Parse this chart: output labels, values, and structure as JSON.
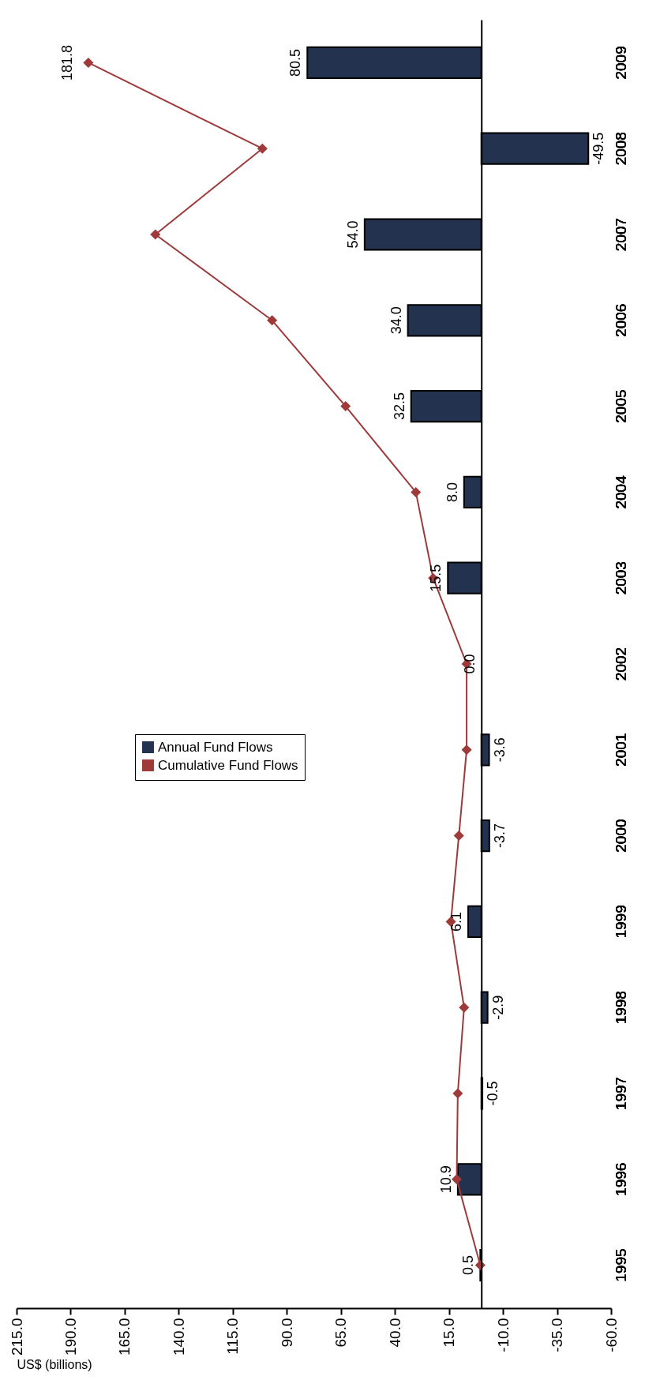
{
  "chart_data": {
    "type": "bar",
    "orientation": "horizontal",
    "xlabel": "US$ (billions)",
    "categories": [
      "2009",
      "2008",
      "2007",
      "2006",
      "2005",
      "2004",
      "2003",
      "2002",
      "2001",
      "2000",
      "1999",
      "1998",
      "1997",
      "1996",
      "1995"
    ],
    "series": [
      {
        "name": "Annual Fund Flows",
        "color": "#22324f",
        "values": [
          80.5,
          -49.5,
          54.0,
          34.0,
          32.5,
          8.0,
          15.5,
          0.0,
          -3.6,
          -3.7,
          6.1,
          -2.9,
          -0.5,
          10.9,
          0.5
        ],
        "value_labels": [
          "80.5",
          "-49.5",
          "54.0",
          "34.0",
          "32.5",
          "8.0",
          "15.5",
          "0.0",
          "-3.6",
          "-3.7",
          "6.1",
          "-2.9",
          "-0.5",
          "10.9",
          "0.5"
        ]
      },
      {
        "name": "Cumulative Fund Flows",
        "type": "line",
        "color": "#9e3a3a",
        "values": [
          181.8,
          101.3,
          150.8,
          96.8,
          62.8,
          30.3,
          22.3,
          6.8,
          6.8,
          10.4,
          14.1,
          8.0,
          10.9,
          11.4,
          0.5
        ],
        "value_labels": [
          "181.8",
          null,
          null,
          null,
          null,
          null,
          null,
          null,
          null,
          null,
          null,
          null,
          null,
          null,
          null
        ]
      }
    ],
    "xlim": [
      215,
      -60
    ],
    "xticks": [
      {
        "value": 215,
        "label": "215.0"
      },
      {
        "value": 190,
        "label": "190.0"
      },
      {
        "value": 165,
        "label": "165.0"
      },
      {
        "value": 140,
        "label": "140.0"
      },
      {
        "value": 115,
        "label": "115.0"
      },
      {
        "value": 90,
        "label": "90.0"
      },
      {
        "value": 65,
        "label": "65.0"
      },
      {
        "value": 40,
        "label": "40.0"
      },
      {
        "value": 15,
        "label": "15.0"
      },
      {
        "value": -10,
        "label": "-10.0"
      },
      {
        "value": -35,
        "label": "-35.0"
      },
      {
        "value": -60,
        "label": "-60.0"
      }
    ],
    "ref_lines": [
      {
        "axis": "x",
        "value": 0
      }
    ],
    "marker": "diamond",
    "line_style": "solid",
    "legend": "left"
  }
}
